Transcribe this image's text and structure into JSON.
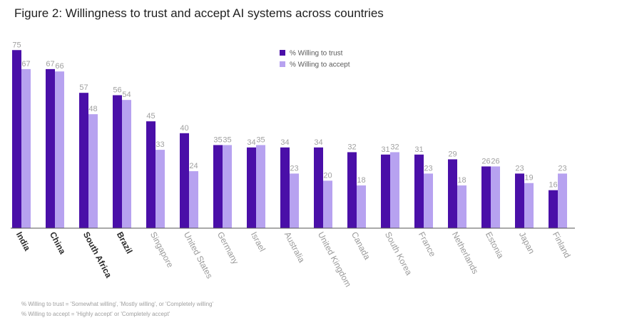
{
  "title": "Figure 2: Willingness to trust and accept AI systems across countries",
  "chart_data": {
    "type": "bar",
    "categories": [
      "India",
      "China",
      "South Africa",
      "Brazil",
      "Singapore",
      "United States",
      "Germany",
      "Israel",
      "Australia",
      "United Kingdom",
      "Canada",
      "South Korea",
      "France",
      "Netherlands",
      "Estonia",
      "Japan",
      "Finland"
    ],
    "bold_categories": [
      "India",
      "China",
      "South Africa",
      "Brazil"
    ],
    "series": [
      {
        "name": "% Willing to trust",
        "color": "#4a0fa8",
        "values": [
          75,
          67,
          57,
          56,
          45,
          40,
          35,
          34,
          34,
          34,
          32,
          31,
          31,
          29,
          26,
          23,
          16
        ]
      },
      {
        "name": "% Willing to accept",
        "color": "#b7a2f0",
        "values": [
          67,
          66,
          48,
          54,
          33,
          24,
          35,
          35,
          23,
          20,
          18,
          32,
          23,
          18,
          26,
          19,
          23
        ]
      }
    ],
    "ylim": [
      0,
      100
    ],
    "legend_position": "top-right",
    "grid": false,
    "data_labels": true
  },
  "notes": [
    "% Willing to trust = 'Somewhat willing', 'Mostly willing', or 'Completely willing'",
    "% Willing to accept = 'Highly accept' or 'Completely accept'"
  ]
}
